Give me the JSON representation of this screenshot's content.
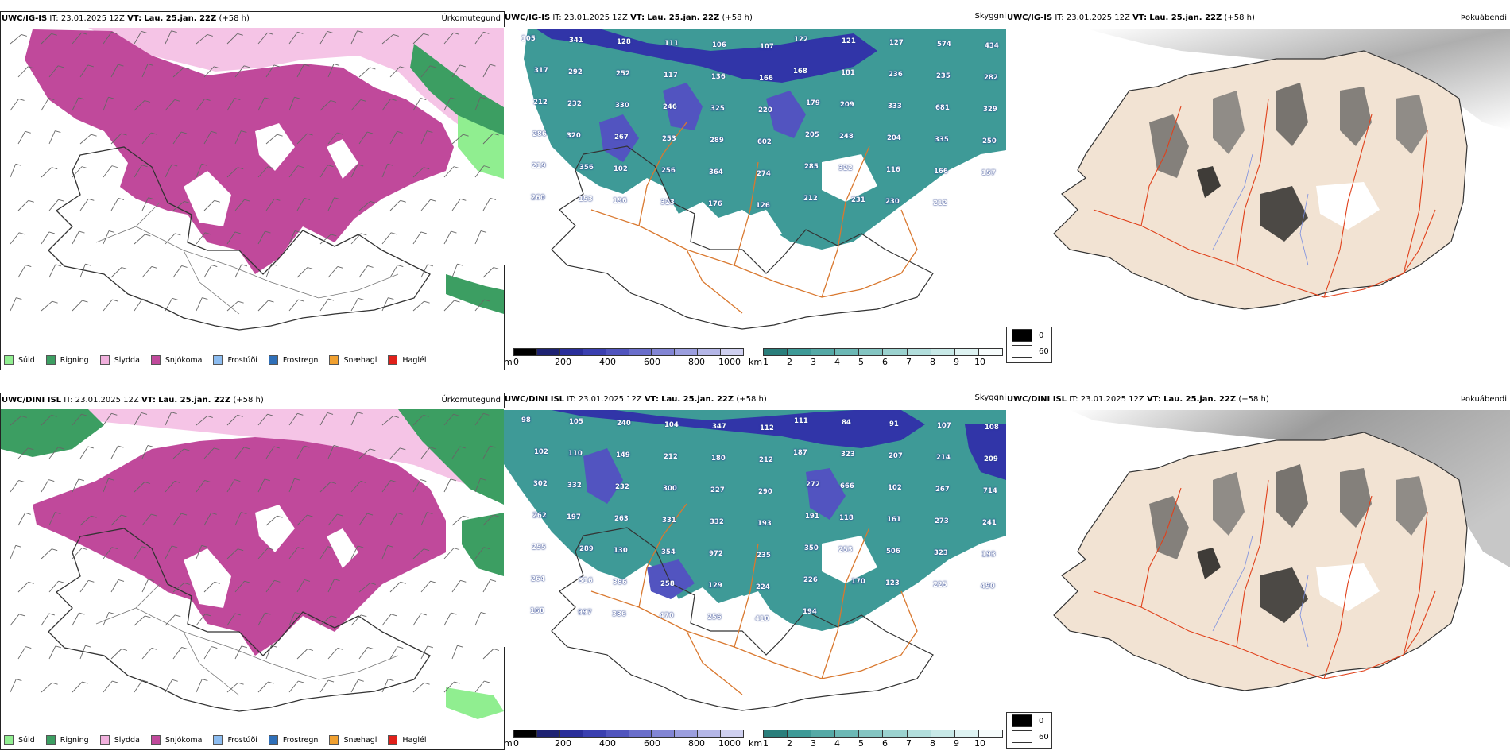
{
  "colors": {
    "sudd": "#90ee90",
    "rigning": "#3c9e62",
    "slydda": "#f1b0dd",
    "snjokoma": "#c0499b",
    "frostudi": "#8cbcf0",
    "frostregn": "#2f6fb8",
    "snaehagl": "#f0a030",
    "haglel": "#e0201a",
    "sea_teal": "#3e9a97",
    "snow_blue": "#3135a8",
    "land_tan": "#f2e3d3",
    "route_orange": "#d9782f"
  },
  "panels": [
    {
      "title_prefix": "UWC/IG-IS",
      "it_label": "IT:",
      "it_value": "23.01.2025 12Z",
      "vt_label": "VT:",
      "vt_value": "Lau. 25.jan. 22Z",
      "lead": "(+58 h)",
      "label": "Úrkomutegund",
      "legend": [
        "Súld",
        "Rigning",
        "Slydda",
        "Snjókoma",
        "Frostúði",
        "Frostregn",
        "Snæhagl",
        "Haglél"
      ]
    },
    {
      "title_prefix": "UWC/IG-IS",
      "it_label": "IT:",
      "it_value": "23.01.2025 12Z",
      "vt_label": "VT:",
      "vt_value": "Lau. 25.jan. 22Z",
      "lead": "(+58 h)",
      "label": "Skyggni",
      "cbar1_unit": "m",
      "cbar1_ticks": [
        "0",
        "200",
        "400",
        "600",
        "800",
        "1000"
      ],
      "cbar2_unit": "km",
      "cbar2_ticks": [
        "1",
        "2",
        "3",
        "4",
        "5",
        "6",
        "7",
        "8",
        "9",
        "10"
      ],
      "map_values": [
        "105",
        "341",
        "128",
        "111",
        "106",
        "107",
        "122",
        "121",
        "127",
        "574",
        "434",
        "317",
        "292",
        "252",
        "117",
        "136",
        "166",
        "168",
        "181",
        "236",
        "235",
        "282",
        "212",
        "232",
        "330",
        "246",
        "325",
        "220",
        "179",
        "209",
        "333",
        "681",
        "329",
        "286",
        "320",
        "267",
        "253",
        "289",
        "602",
        "205",
        "248",
        "204",
        "335",
        "250",
        "219",
        "356",
        "102",
        "256",
        "364",
        "274",
        "285",
        "322",
        "116",
        "166",
        "157",
        "260",
        "153",
        "196",
        "323",
        "176",
        "126",
        "212",
        "231",
        "230",
        "212"
      ]
    },
    {
      "title_prefix": "UWC/IG-IS",
      "it_label": "IT:",
      "it_value": "23.01.2025 12Z",
      "vt_label": "VT:",
      "vt_value": "Lau. 25.jan. 22Z",
      "lead": "(+58 h)",
      "label": "Þokuábendi",
      "box_values": [
        "0",
        "60"
      ]
    },
    {
      "title_prefix": "UWC/DINI ISL",
      "it_label": "IT:",
      "it_value": "23.01.2025 12Z",
      "vt_label": "VT:",
      "vt_value": "Lau. 25.jan. 22Z",
      "lead": "(+58 h)",
      "label": "Úrkomutegund",
      "legend": [
        "Súld",
        "Rigning",
        "Slydda",
        "Snjókoma",
        "Frostúði",
        "Frostregn",
        "Snæhagl",
        "Haglél"
      ]
    },
    {
      "title_prefix": "UWC/DINI ISL",
      "it_label": "IT:",
      "it_value": "23.01.2025 12Z",
      "vt_label": "VT:",
      "vt_value": "Lau. 25.jan. 22Z",
      "lead": "(+58 h)",
      "label": "Skyggni",
      "cbar1_unit": "m",
      "cbar1_ticks": [
        "0",
        "200",
        "400",
        "600",
        "800",
        "1000"
      ],
      "cbar2_unit": "km",
      "cbar2_ticks": [
        "1",
        "2",
        "3",
        "4",
        "5",
        "6",
        "7",
        "8",
        "9",
        "10"
      ],
      "map_values": [
        "98",
        "105",
        "240",
        "104",
        "347",
        "112",
        "111",
        "84",
        "91",
        "107",
        "108",
        "102",
        "110",
        "149",
        "212",
        "180",
        "212",
        "187",
        "323",
        "207",
        "214",
        "209",
        "302",
        "332",
        "232",
        "300",
        "227",
        "290",
        "272",
        "666",
        "102",
        "267",
        "714",
        "262",
        "197",
        "263",
        "331",
        "332",
        "193",
        "191",
        "118",
        "161",
        "273",
        "241",
        "255",
        "289",
        "130",
        "354",
        "972",
        "235",
        "350",
        "253",
        "506",
        "323",
        "193",
        "264",
        "316",
        "386",
        "258",
        "129",
        "224",
        "226",
        "170",
        "123",
        "225",
        "490",
        "168",
        "997",
        "386",
        "470",
        "256",
        "410",
        "194"
      ]
    },
    {
      "title_prefix": "UWC/DINI ISL",
      "it_label": "IT:",
      "it_value": "23.01.2025 12Z",
      "vt_label": "VT:",
      "vt_value": "Lau. 25.jan. 22Z",
      "lead": "(+58 h)",
      "label": "Þokuábendi",
      "box_values": [
        "0",
        "60"
      ]
    }
  ]
}
